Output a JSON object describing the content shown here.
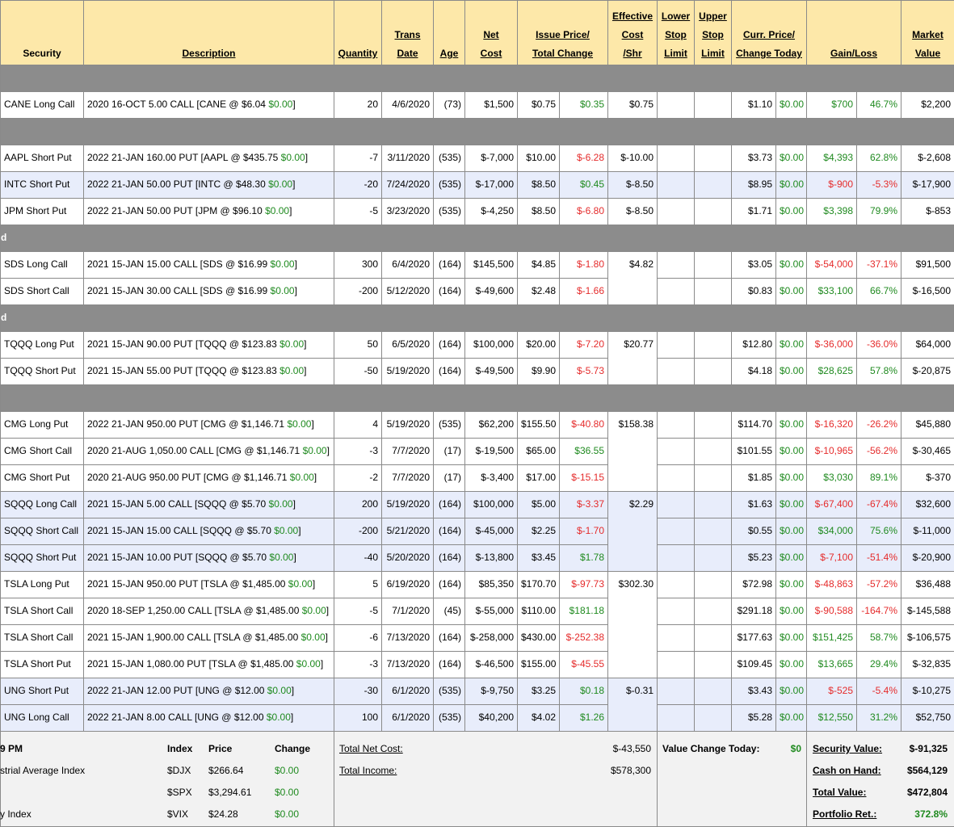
{
  "header": [
    [
      "Security"
    ],
    [
      "Description"
    ],
    [
      "Quantity"
    ],
    [
      "Trans",
      "Date"
    ],
    [
      "Age"
    ],
    [
      "Net",
      "Cost"
    ],
    [
      "Issue Price/",
      "Total Change"
    ],
    [
      "Effective",
      "Cost",
      "/Shr"
    ],
    [
      "Lower",
      "Stop",
      "Limit"
    ],
    [
      "Upper",
      "Stop",
      "Limit"
    ],
    [
      "Curr. Price/",
      "Change Today"
    ],
    [
      "Gain/Loss"
    ],
    [
      "Market",
      "Value"
    ]
  ],
  "sections": [
    {
      "rows": [
        {
          "cells": [
            "CANE Long Call",
            [
              "2020 16-OCT 5.00 CALL [CANE @ $6.04 ",
              "$0.00",
              "]"
            ],
            "20",
            "4/6/2020",
            "(73)",
            "$1,500",
            "$0.75",
            "$0.35",
            "$0.75",
            "$1.10",
            "$0.00",
            "$700",
            "46.7%",
            "$2,200"
          ]
        }
      ]
    },
    {
      "rows": [
        {
          "cells": [
            "AAPL Short Put",
            [
              "2022 21-JAN 160.00 PUT [AAPL @ $435.75 ",
              "$0.00",
              "]"
            ],
            "-7",
            "3/11/2020",
            "(535)",
            "$-7,000",
            "$10.00",
            "$-6.28",
            "$-10.00",
            "$3.73",
            "$0.00",
            "$4,393",
            "62.8%",
            "$-2,608"
          ]
        },
        {
          "cells": [
            "INTC Short Put",
            [
              "2022 21-JAN 50.00 PUT [INTC @ $48.30 ",
              "$0.00",
              "]"
            ],
            "-20",
            "7/24/2020",
            "(535)",
            "$-17,000",
            "$8.50",
            "$0.45",
            "$-8.50",
            "$8.95",
            "$0.00",
            "$-900",
            "-5.3%",
            "$-17,900"
          ],
          "highlight": true
        },
        {
          "cells": [
            "JPM Short Put",
            [
              "2022 21-JAN 50.00 PUT [JPM @ $96.10 ",
              "$0.00",
              "]"
            ],
            "-5",
            "3/23/2020",
            "(535)",
            "$-4,250",
            "$8.50",
            "$-6.80",
            "$-8.50",
            "$1.71",
            "$0.00",
            "$3,398",
            "79.9%",
            "$-853"
          ]
        }
      ]
    },
    {
      "label": "d",
      "rows": [
        {
          "cells": [
            "SDS Long Call",
            [
              "2021 15-JAN 15.00 CALL [SDS @ $16.99 ",
              "$0.00",
              "]"
            ],
            "300",
            "6/4/2020",
            "(164)",
            "$145,500",
            "$4.85",
            "$-1.80",
            "$4.82",
            "$3.05",
            "$0.00",
            "$-54,000",
            "-37.1%",
            "$91,500"
          ]
        },
        {
          "cells": [
            "SDS Short Call",
            [
              "2021 15-JAN 30.00 CALL [SDS @ $16.99 ",
              "$0.00",
              "]"
            ],
            "-200",
            "5/12/2020",
            "(164)",
            "$-49,600",
            "$2.48",
            "$-1.66",
            null,
            "$0.83",
            "$0.00",
            "$33,100",
            "66.7%",
            "$-16,500"
          ]
        }
      ]
    },
    {
      "label": "d",
      "rows": [
        {
          "cells": [
            "TQQQ Long Put",
            [
              "2021 15-JAN 90.00 PUT [TQQQ @ $123.83 ",
              "$0.00",
              "]"
            ],
            "50",
            "6/5/2020",
            "(164)",
            "$100,000",
            "$20.00",
            "$-7.20",
            "$20.77",
            "$12.80",
            "$0.00",
            "$-36,000",
            "-36.0%",
            "$64,000"
          ]
        },
        {
          "cells": [
            "TQQQ Short Put",
            [
              "2021 15-JAN 55.00 PUT [TQQQ @ $123.83 ",
              "$0.00",
              "]"
            ],
            "-50",
            "5/19/2020",
            "(164)",
            "$-49,500",
            "$9.90",
            "$-5.73",
            null,
            "$4.18",
            "$0.00",
            "$28,625",
            "57.8%",
            "$-20,875"
          ]
        }
      ]
    },
    {
      "rows": [
        {
          "cells": [
            "CMG Long Put",
            [
              "2022 21-JAN 950.00 PUT [CMG @ $1,146.71 ",
              "$0.00",
              "]"
            ],
            "4",
            "5/19/2020",
            "(535)",
            "$62,200",
            "$155.50",
            "$-40.80",
            "$158.38",
            "$114.70",
            "$0.00",
            "$-16,320",
            "-26.2%",
            "$45,880"
          ]
        },
        {
          "cells": [
            "CMG Short Call",
            [
              "2020 21-AUG 1,050.00 CALL [CMG @ $1,146.71 ",
              "$0.00",
              "]"
            ],
            "-3",
            "7/7/2020",
            "(17)",
            "$-19,500",
            "$65.00",
            "$36.55",
            null,
            "$101.55",
            "$0.00",
            "$-10,965",
            "-56.2%",
            "$-30,465"
          ]
        },
        {
          "cells": [
            "CMG Short Put",
            [
              "2020 21-AUG 950.00 PUT [CMG @ $1,146.71 ",
              "$0.00",
              "]"
            ],
            "-2",
            "7/7/2020",
            "(17)",
            "$-3,400",
            "$17.00",
            "$-15.15",
            null,
            "$1.85",
            "$0.00",
            "$3,030",
            "89.1%",
            "$-370"
          ]
        },
        {
          "cells": [
            "SQQQ Long Call",
            [
              "2021 15-JAN 5.00 CALL [SQQQ @ $5.70 ",
              "$0.00",
              "]"
            ],
            "200",
            "5/19/2020",
            "(164)",
            "$100,000",
            "$5.00",
            "$-3.37",
            "$2.29",
            "$1.63",
            "$0.00",
            "$-67,400",
            "-67.4%",
            "$32,600"
          ],
          "highlight": true
        },
        {
          "cells": [
            "SQQQ Short Call",
            [
              "2021 15-JAN 15.00 CALL [SQQQ @ $5.70 ",
              "$0.00",
              "]"
            ],
            "-200",
            "5/21/2020",
            "(164)",
            "$-45,000",
            "$2.25",
            "$-1.70",
            null,
            "$0.55",
            "$0.00",
            "$34,000",
            "75.6%",
            "$-11,000"
          ],
          "highlight": true
        },
        {
          "cells": [
            "SQQQ Short Put",
            [
              "2021 15-JAN 10.00 PUT [SQQQ @ $5.70 ",
              "$0.00",
              "]"
            ],
            "-40",
            "5/20/2020",
            "(164)",
            "$-13,800",
            "$3.45",
            "$1.78",
            null,
            "$5.23",
            "$0.00",
            "$-7,100",
            "-51.4%",
            "$-20,900"
          ],
          "highlight": true
        },
        {
          "cells": [
            "TSLA Long Put",
            [
              "2021 15-JAN 950.00 PUT [TSLA @ $1,485.00 ",
              "$0.00",
              "]"
            ],
            "5",
            "6/19/2020",
            "(164)",
            "$85,350",
            "$170.70",
            "$-97.73",
            "$302.30",
            "$72.98",
            "$0.00",
            "$-48,863",
            "-57.2%",
            "$36,488"
          ]
        },
        {
          "cells": [
            "TSLA Short Call",
            [
              "2020 18-SEP 1,250.00 CALL [TSLA @ $1,485.00 ",
              "$0.00",
              "]"
            ],
            "-5",
            "7/1/2020",
            "(45)",
            "$-55,000",
            "$110.00",
            "$181.18",
            null,
            "$291.18",
            "$0.00",
            "$-90,588",
            "-164.7%",
            "$-145,588"
          ]
        },
        {
          "cells": [
            "TSLA Short Call",
            [
              "2021 15-JAN 1,900.00 CALL [TSLA @ $1,485.00 ",
              "$0.00",
              "]"
            ],
            "-6",
            "7/13/2020",
            "(164)",
            "$-258,000",
            "$430.00",
            "$-252.38",
            null,
            "$177.63",
            "$0.00",
            "$151,425",
            "58.7%",
            "$-106,575"
          ]
        },
        {
          "cells": [
            "TSLA Short Put",
            [
              "2021 15-JAN 1,080.00 PUT [TSLA @ $1,485.00 ",
              "$0.00",
              "]"
            ],
            "-3",
            "7/13/2020",
            "(164)",
            "$-46,500",
            "$155.00",
            "$-45.55",
            null,
            "$109.45",
            "$0.00",
            "$13,665",
            "29.4%",
            "$-32,835"
          ]
        },
        {
          "cells": [
            "UNG Short Put",
            [
              "2022 21-JAN 12.00 PUT [UNG @ $12.00 ",
              "$0.00",
              "]"
            ],
            "-30",
            "6/1/2020",
            "(535)",
            "$-9,750",
            "$3.25",
            "$0.18",
            "$-0.31",
            "$3.43",
            "$0.00",
            "$-525",
            "-5.4%",
            "$-10,275"
          ],
          "highlight": true
        },
        {
          "cells": [
            "UNG Long Call",
            [
              "2022 21-JAN 8.00 CALL [UNG @ $12.00 ",
              "$0.00",
              "]"
            ],
            "100",
            "6/1/2020",
            "(535)",
            "$40,200",
            "$4.02",
            "$1.26",
            null,
            "$5.28",
            "$0.00",
            "$12,550",
            "31.2%",
            "$52,750"
          ],
          "highlight": true
        }
      ]
    }
  ],
  "footer": {
    "index_table": {
      "header": [
        "9 PM",
        "Index",
        "Price",
        "Change"
      ],
      "rows": [
        [
          "strial Average Index",
          "$DJX",
          "$266.64",
          "$0.00"
        ],
        [
          null,
          "$SPX",
          "$3,294.61",
          "$0.00"
        ],
        [
          "y Index",
          "$VIX",
          "$24.28",
          "$0.00"
        ]
      ]
    },
    "totals": [
      [
        "Total Net Cost:",
        "$-43,550"
      ],
      [
        "Total Income:",
        "$578,300"
      ]
    ],
    "today": [
      "Value Change Today:",
      "$0"
    ],
    "summary": [
      [
        "Security Value:",
        "$-91,325"
      ],
      [
        "Cash on Hand:",
        "$564,129"
      ],
      [
        "Total Value:",
        "$472,804"
      ],
      [
        "Portfolio Ret.:",
        "372.8%"
      ]
    ]
  }
}
